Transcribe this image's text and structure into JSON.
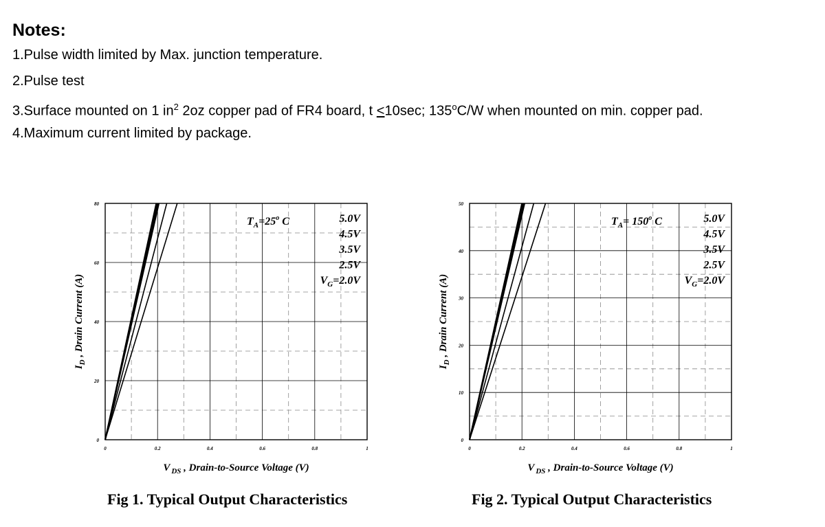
{
  "notes": {
    "title": "Notes:",
    "line1": "1.Pulse width limited by Max. junction temperature.",
    "line2": "2.Pulse test",
    "line3_a": "3.Surface mounted on 1 in",
    "line3_sup": "2",
    "line3_b": " 2oz copper pad of FR4 board, t ",
    "line3_le": "<",
    "line3_c": "10sec; 135",
    "line3_deg": "o",
    "line3_d": "C/W when mounted on min. copper pad.",
    "line4": "4.Maximum current limited by package."
  },
  "chart_data": [
    {
      "type": "line",
      "caption": "Fig 1. Typical Output Characteristics",
      "xlabel_main": "V",
      "xlabel_sub": "DS",
      "xlabel_rest": " , Drain-to-Source Voltage (V)",
      "ylabel_main": "I",
      "ylabel_sub": "D",
      "ylabel_rest": " , Drain Current (A)",
      "xlim": [
        0,
        1
      ],
      "ylim": [
        0,
        80
      ],
      "x_ticks": [
        "0",
        "0.2",
        "0.4",
        "0.6",
        "0.8",
        "1"
      ],
      "y_ticks": [
        "0",
        "20",
        "40",
        "60",
        "80"
      ],
      "grid": true,
      "annotation": {
        "main": "T",
        "sub": "A",
        "rest": "=25",
        "deg": "o",
        "unit": " C"
      },
      "legend": {
        "placement": "top-right",
        "lines": [
          "5.0V",
          "4.5V",
          "3.5V",
          "2.5V"
        ],
        "last_main": "V",
        "last_sub": "G",
        "last_rest": "=2.0V"
      },
      "series": [
        {
          "values": [
            [
              0,
              0
            ],
            [
              0.195,
              80
            ]
          ]
        },
        {
          "values": [
            [
              0,
              0
            ],
            [
              0.2,
              80
            ]
          ]
        },
        {
          "values": [
            [
              0,
              0
            ],
            [
              0.205,
              80
            ]
          ]
        },
        {
          "values": [
            [
              0,
              0
            ],
            [
              0.235,
              80
            ]
          ]
        },
        {
          "values": [
            [
              0,
              0
            ],
            [
              0.275,
              80
            ]
          ]
        }
      ]
    },
    {
      "type": "line",
      "caption": "Fig 2. Typical Output Characteristics",
      "xlabel_main": "V",
      "xlabel_sub": "DS",
      "xlabel_rest": " , Drain-to-Source Voltage (V)",
      "ylabel_main": "I",
      "ylabel_sub": "D",
      "ylabel_rest": " , Drain Current (A)",
      "xlim": [
        0,
        1
      ],
      "ylim": [
        0,
        50
      ],
      "x_ticks": [
        "0",
        "0.2",
        "0.4",
        "0.6",
        "0.8",
        "1"
      ],
      "y_ticks": [
        "0",
        "10",
        "20",
        "30",
        "40",
        "50"
      ],
      "grid": true,
      "annotation": {
        "main": "T",
        "sub": "A",
        "rest": "= 150",
        "deg": "o",
        "unit": " C"
      },
      "legend": {
        "placement": "top-right",
        "lines": [
          "5.0V",
          "4.5V",
          "3.5V",
          "2.5V"
        ],
        "last_main": "V",
        "last_sub": "G",
        "last_rest": "=2.0V"
      },
      "series": [
        {
          "values": [
            [
              0,
              0
            ],
            [
              0.2,
              50
            ]
          ]
        },
        {
          "values": [
            [
              0,
              0
            ],
            [
              0.205,
              50
            ]
          ]
        },
        {
          "values": [
            [
              0,
              0
            ],
            [
              0.21,
              50
            ]
          ]
        },
        {
          "values": [
            [
              0,
              0
            ],
            [
              0.245,
              50
            ]
          ]
        },
        {
          "values": [
            [
              0,
              0
            ],
            [
              0.29,
              50
            ]
          ]
        }
      ]
    }
  ]
}
